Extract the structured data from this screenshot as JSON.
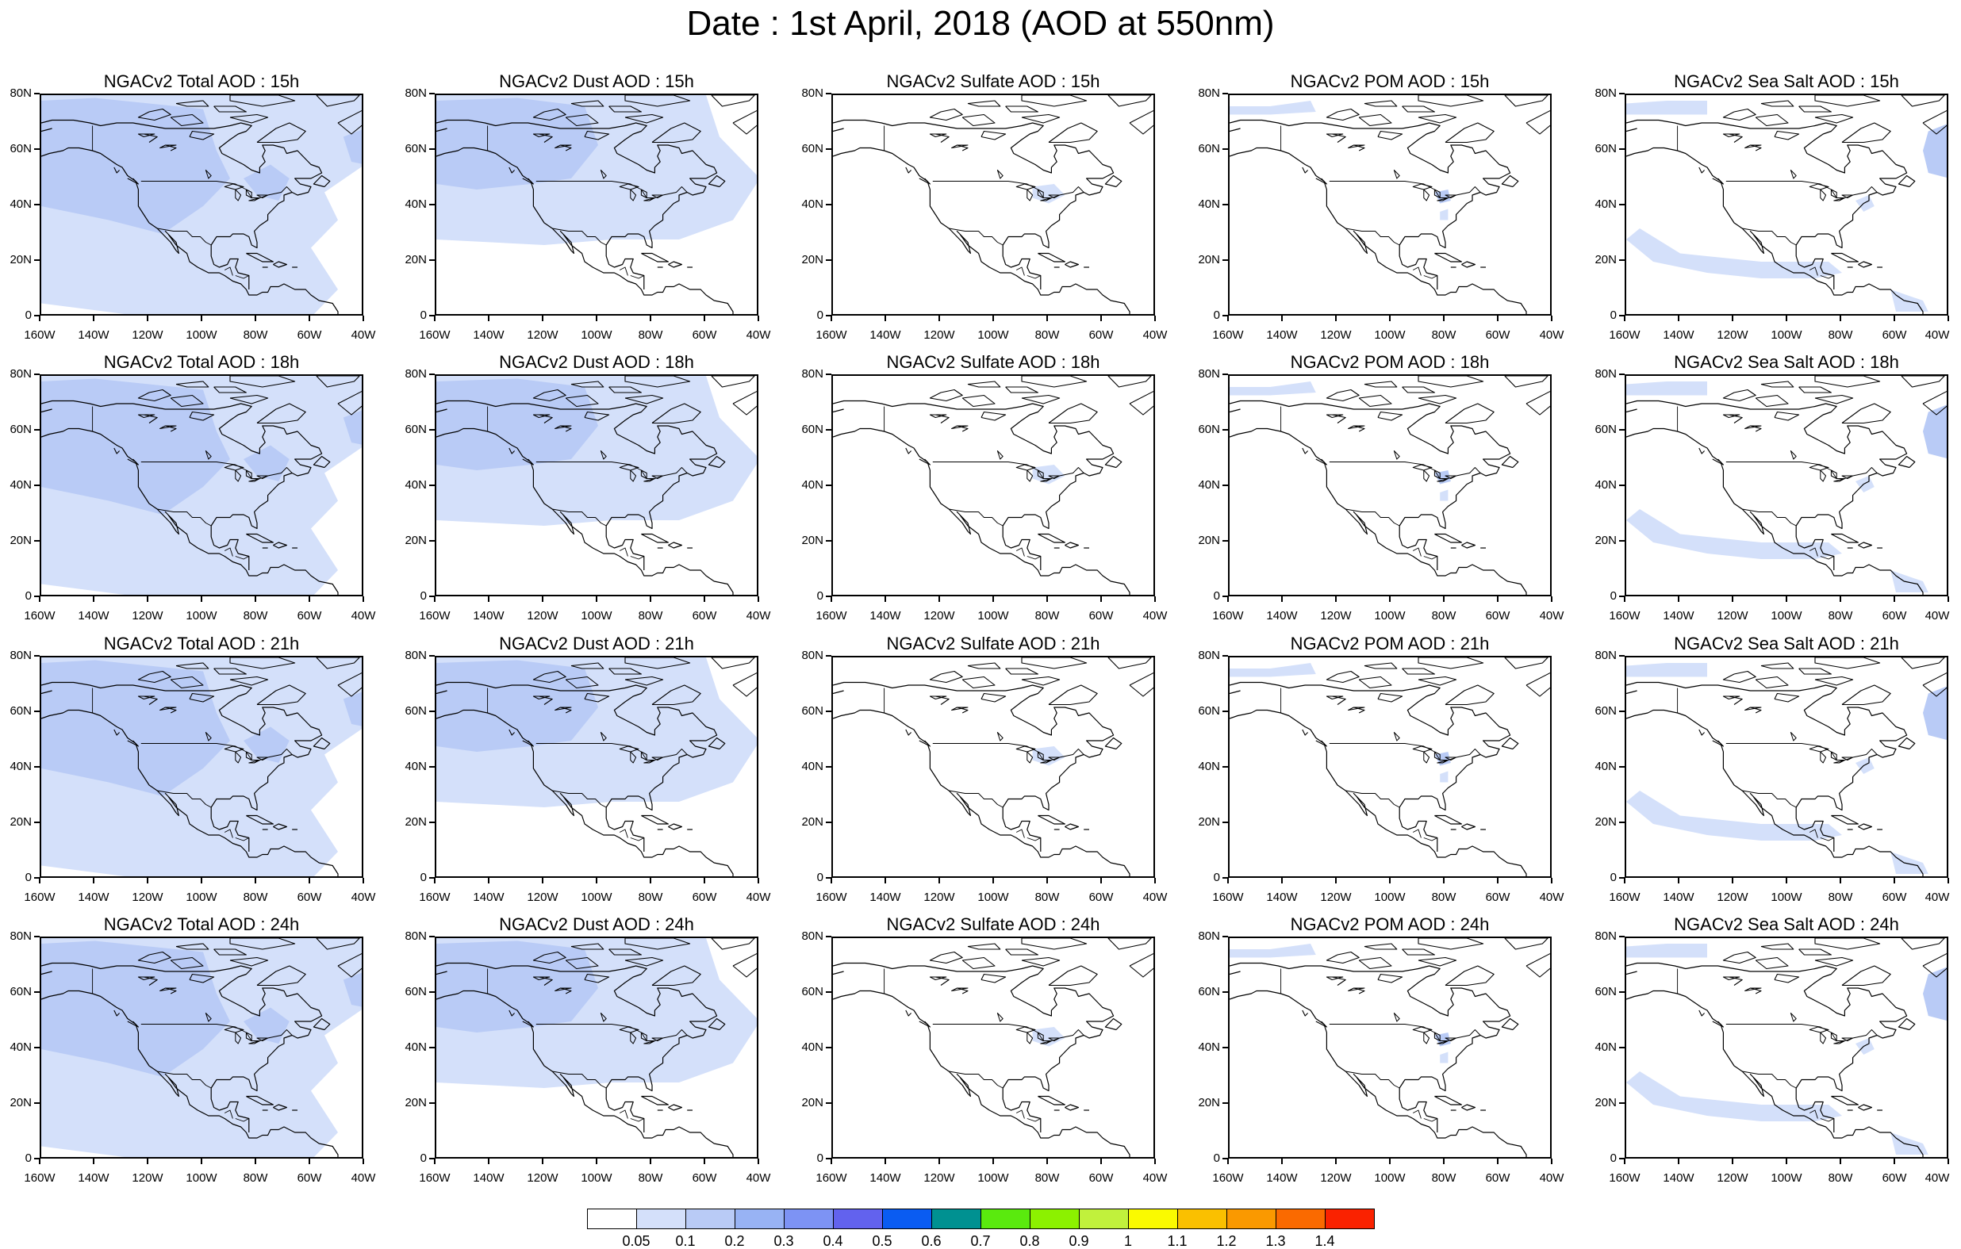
{
  "figure_title": "Date : 1st April, 2018 (AOD at 550nm)",
  "lat_labels": [
    "80N",
    "60N",
    "40N",
    "20N",
    "0"
  ],
  "lon_labels": [
    "160W",
    "140W",
    "120W",
    "100W",
    "80W",
    "60W",
    "40W"
  ],
  "rows": [
    {
      "hour": "15h",
      "titles": [
        "NGACv2 Total AOD : 15h",
        "NGACv2 Dust AOD : 15h",
        "NGACv2 Sulfate AOD : 15h",
        "NGACv2 POM AOD : 15h",
        "NGACv2 Sea Salt AOD : 15h"
      ]
    },
    {
      "hour": "18h",
      "titles": [
        "NGACv2 Total AOD : 18h",
        "NGACv2 Dust AOD : 18h",
        "NGACv2 Sulfate AOD : 18h",
        "NGACv2 POM AOD : 18h",
        "NGACv2 Sea Salt AOD : 18h"
      ]
    },
    {
      "hour": "21h",
      "titles": [
        "NGACv2 Total AOD : 21h",
        "NGACv2 Dust AOD : 21h",
        "NGACv2 Sulfate AOD : 21h",
        "NGACv2 POM AOD : 21h",
        "NGACv2 Sea Salt AOD : 21h"
      ]
    },
    {
      "hour": "24h",
      "titles": [
        "NGACv2 Total AOD : 24h",
        "NGACv2 Dust AOD : 24h",
        "NGACv2 Sulfate AOD : 24h",
        "NGACv2 POM AOD : 24h",
        "NGACv2 Sea Salt  AOD : 24h"
      ]
    }
  ],
  "species": [
    "total",
    "dust",
    "sulfate",
    "pom",
    "seasalt"
  ],
  "colorbar": {
    "colors": [
      "#ffffff",
      "#d4e0fa",
      "#b9cbf6",
      "#98b3f4",
      "#7d93f4",
      "#6262ee",
      "#0a5cf2",
      "#009191",
      "#5aea0e",
      "#8cf100",
      "#c1f13c",
      "#fafa00",
      "#fac000",
      "#fa9900",
      "#fa6a00",
      "#fa2200"
    ],
    "labels": [
      "0.05",
      "0.1",
      "0.2",
      "0.3",
      "0.4",
      "0.5",
      "0.6",
      "0.7",
      "0.8",
      "0.9",
      "1",
      "1.1",
      "1.2",
      "1.3",
      "1.4"
    ]
  },
  "chart_data": {
    "type": "heatmap",
    "title": "Date : 1st April, 2018 (AOD at 550nm)",
    "quantity": "AOD at 550nm",
    "lon_range": [
      -160,
      -40
    ],
    "lat_range": [
      0,
      80
    ],
    "hours": [
      "15h",
      "18h",
      "21h",
      "24h"
    ],
    "species": [
      "Total",
      "Dust",
      "Sulfate",
      "POM",
      "Sea Salt"
    ],
    "levels": [
      0.05,
      0.1,
      0.2,
      0.3,
      0.4,
      0.5,
      0.6,
      0.7,
      0.8,
      0.9,
      1,
      1.1,
      1.2,
      1.3,
      1.4
    ],
    "colors": [
      "#ffffff",
      "#d4e0fa",
      "#b9cbf6",
      "#98b3f4",
      "#7d93f4",
      "#6262ee",
      "#0a5cf2",
      "#009191",
      "#5aea0e",
      "#8cf100",
      "#c1f13c",
      "#fafa00",
      "#fac000",
      "#fa9900",
      "#fa6a00",
      "#fa2200"
    ],
    "regions": {
      "total": [
        {
          "lon": [
            -160,
            -40
          ],
          "lat": [
            0,
            80
          ],
          "aod_bin": "0.05-0.1"
        },
        {
          "lon": [
            -160,
            -95
          ],
          "lat": [
            40,
            80
          ],
          "aod_bin": "0.1-0.2"
        },
        {
          "lon": [
            -150,
            -125
          ],
          "lat": [
            42,
            52
          ],
          "aod_bin": "0.1-0.2"
        },
        {
          "lon": [
            -50,
            -40
          ],
          "lat": [
            55,
            65
          ],
          "aod_bin": "0.1-0.2"
        }
      ],
      "dust": [
        {
          "lon": [
            -160,
            -40
          ],
          "lat": [
            25,
            80
          ],
          "aod_bin": "0.05-0.1"
        },
        {
          "lon": [
            -160,
            -105
          ],
          "lat": [
            45,
            80
          ],
          "aod_bin": "0.1-0.2"
        }
      ],
      "sulfate": [
        {
          "lon": [
            -85,
            -75
          ],
          "lat": [
            40,
            48
          ],
          "aod_bin": "0.05-0.1"
        }
      ],
      "pom": [
        {
          "lon": [
            -160,
            -125
          ],
          "lat": [
            70,
            80
          ],
          "aod_bin": "0.05-0.1"
        },
        {
          "lon": [
            -85,
            -78
          ],
          "lat": [
            40,
            46
          ],
          "aod_bin": "0.1-0.2"
        }
      ],
      "seasalt": [
        {
          "lon": [
            -160,
            -130
          ],
          "lat": [
            70,
            80
          ],
          "aod_bin": "0.05-0.1"
        },
        {
          "lon": [
            -50,
            -40
          ],
          "lat": [
            50,
            65
          ],
          "aod_bin": "0.1-0.2"
        },
        {
          "lon": [
            -160,
            -80
          ],
          "lat": [
            10,
            25
          ],
          "aod_bin": "0.05-0.1"
        }
      ]
    }
  }
}
